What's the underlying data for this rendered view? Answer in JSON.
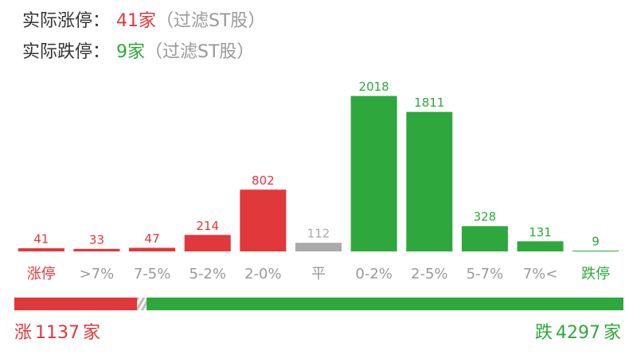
{
  "header": [
    {
      "label": "实际涨停：",
      "count": 41,
      "unit": "家",
      "note": "（过滤ST股）",
      "color": "#e0383b"
    },
    {
      "label": "实际跌停：",
      "count": 9,
      "unit": "家",
      "note": "（过滤ST股）",
      "color": "#2ea83c"
    }
  ],
  "chart_data": {
    "type": "bar",
    "categories": [
      "涨停",
      ">7%",
      "7-5%",
      "5-2%",
      "2-0%",
      "平",
      "0-2%",
      "2-5%",
      "5-7%",
      "7%<",
      "跌停"
    ],
    "values": [
      41,
      33,
      47,
      214,
      802,
      112,
      2018,
      1811,
      328,
      131,
      9
    ],
    "colors": [
      "#e0383b",
      "#e0383b",
      "#e0383b",
      "#e0383b",
      "#e0383b",
      "#aaaaaa",
      "#2ea83c",
      "#2ea83c",
      "#2ea83c",
      "#2ea83c",
      "#2ea83c"
    ],
    "label_colors": [
      "#e0383b",
      "#999999",
      "#999999",
      "#999999",
      "#999999",
      "#999999",
      "#999999",
      "#999999",
      "#999999",
      "#999999",
      "#2ea83c"
    ],
    "ylim": [
      0,
      2200
    ]
  },
  "summary": {
    "rise": {
      "label": "涨",
      "value": 1137,
      "unit": "家",
      "color": "#e0383b"
    },
    "fall": {
      "label": "跌",
      "value": 4297,
      "unit": "家",
      "color": "#2ea83c"
    }
  }
}
